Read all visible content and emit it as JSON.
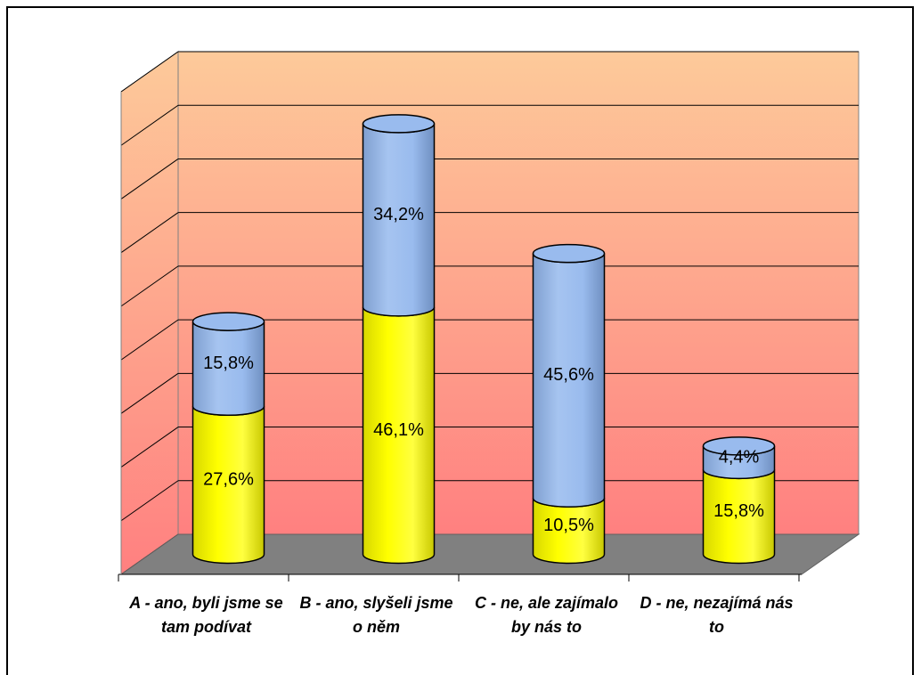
{
  "chart_data": {
    "type": "stacked-cylinder",
    "categories": [
      "A - ano, byli jsme se tam podívat",
      "B - ano, slyšeli jsme o něm",
      "C - ne, ale zajímalo by nás to",
      "D - ne, nezajímá nás to"
    ],
    "series": [
      {
        "color": "#ffff00",
        "values": [
          27.6,
          46.1,
          10.5,
          15.8
        ],
        "value_labels": [
          "27,6%",
          "46,1%",
          "10,5%",
          "15,8%"
        ]
      },
      {
        "color": "#99bbee",
        "values": [
          15.8,
          34.2,
          45.6,
          4.4
        ],
        "value_labels": [
          "15,8%",
          "34,2%",
          "45,6%",
          "4,4%"
        ]
      }
    ],
    "ylim": [
      0,
      90
    ],
    "yticks": [
      0,
      10,
      20,
      30,
      40,
      50,
      60,
      70,
      80,
      90
    ],
    "grid": true
  }
}
